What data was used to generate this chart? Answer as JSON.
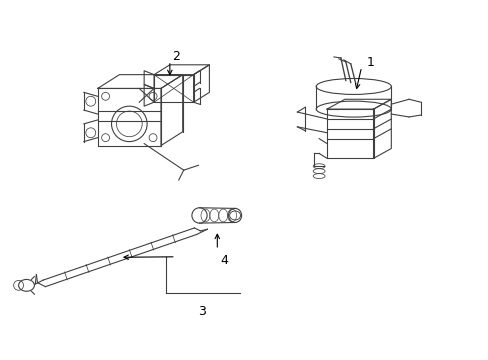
{
  "background_color": "#ffffff",
  "line_color": "#404040",
  "label_color": "#000000",
  "lw": 0.8,
  "fig_w": 4.89,
  "fig_h": 3.6,
  "dpi": 100
}
